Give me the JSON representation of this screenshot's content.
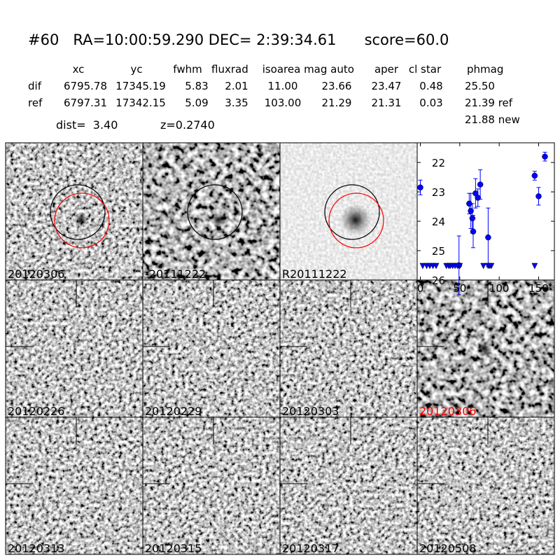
{
  "header": {
    "title": "#60   RA=10:00:59.290 DEC= 2:39:34.61      score=60.0"
  },
  "table": {
    "columns": [
      "xc",
      "yc",
      "fwhm",
      "fluxrad",
      "isoarea",
      "mag auto",
      "aper",
      "cl star",
      "phmag"
    ],
    "rows": [
      [
        "dif",
        "6795.78",
        "17345.19",
        "5.83",
        "2.01",
        "11.00",
        "23.66",
        "23.47",
        "0.48",
        "25.50"
      ],
      [
        "ref",
        "6797.31",
        "17342.15",
        "5.09",
        "3.35",
        "103.00",
        "21.29",
        "21.31",
        "0.03",
        "21.39 ref"
      ]
    ],
    "extra": "21.88 new"
  },
  "info": {
    "dist": "dist=  3.40",
    "z": "z=0.2740"
  },
  "panels": [
    "20120306",
    "-20111222",
    "R20111222",
    "20120226",
    "20120229",
    "20120303",
    "20120306",
    "20120313",
    "20120315",
    "20120317",
    "20120508"
  ],
  "chart_data": {
    "type": "scatter",
    "color": "#0000ff",
    "xlim": [
      -4,
      170
    ],
    "ylim": [
      26,
      21.33
    ],
    "xticks": [
      0,
      50,
      100,
      150
    ],
    "yticks": [
      22,
      23,
      24,
      25,
      26
    ],
    "detections": {
      "x": [
        0,
        49,
        62,
        64,
        66,
        67,
        70,
        73,
        76,
        86,
        145,
        150,
        158
      ],
      "y": [
        22.85,
        25.5,
        23.4,
        23.65,
        23.9,
        24.35,
        23.05,
        23.2,
        22.75,
        24.55,
        22.45,
        23.15,
        21.8
      ],
      "err": [
        0.25,
        1.0,
        0.35,
        0.6,
        0.5,
        0.55,
        0.5,
        0.3,
        0.5,
        1.0,
        0.15,
        0.3,
        0.15
      ]
    },
    "limits": {
      "x": [
        3,
        8,
        12,
        16,
        20,
        33,
        36,
        38,
        41,
        44,
        47,
        50,
        80,
        86,
        88,
        90,
        145
      ],
      "y": [
        25.5,
        25.5,
        25.5,
        25.5,
        25.5,
        25.5,
        25.5,
        25.5,
        25.5,
        25.5,
        25.5,
        25.5,
        25.5,
        25.5,
        25.5,
        25.5,
        25.5
      ]
    }
  }
}
